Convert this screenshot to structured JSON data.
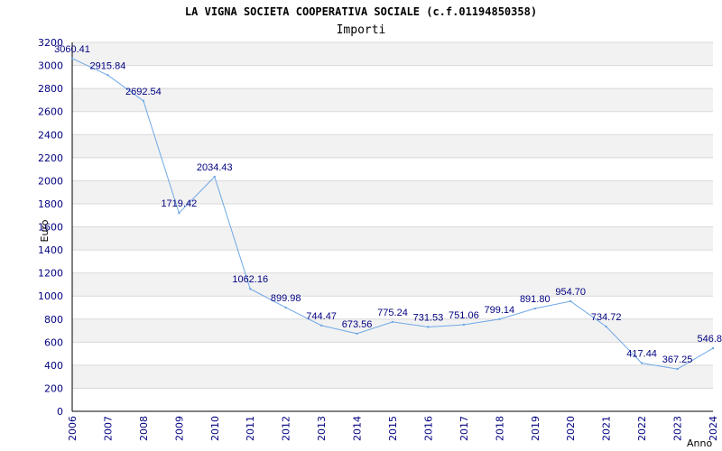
{
  "chart_data": {
    "type": "line",
    "title": "LA VIGNA SOCIETA COOPERATIVA SOCIALE (c.f.01194850358)",
    "subtitle": "Importi",
    "xlabel": "Anno",
    "ylabel": "Euro",
    "categories": [
      "2006",
      "2007",
      "2008",
      "2009",
      "2010",
      "2011",
      "2012",
      "2013",
      "2014",
      "2015",
      "2016",
      "2017",
      "2018",
      "2019",
      "2020",
      "2021",
      "2022",
      "2023",
      "2024"
    ],
    "values": [
      3060.41,
      2915.84,
      2692.54,
      1719.42,
      2034.43,
      1062.16,
      899.98,
      744.47,
      673.56,
      775.24,
      731.53,
      751.06,
      799.14,
      891.8,
      954.7,
      734.72,
      417.44,
      367.25,
      546.8
    ],
    "labels": [
      "3060.41",
      "2915.84",
      "2692.54",
      "1719.42",
      "2034.43",
      "1062.16",
      "899.98",
      "744.47",
      "673.56",
      "775.24",
      "731.53",
      "751.06",
      "799.14",
      "891.80",
      "954.70",
      "734.72",
      "417.44",
      "367.25",
      "546.8"
    ],
    "ylim": [
      0,
      3200
    ],
    "yticks": [
      0,
      200,
      400,
      600,
      800,
      1000,
      1200,
      1400,
      1600,
      1800,
      2000,
      2200,
      2400,
      2600,
      2800,
      3000,
      3200
    ],
    "grid": true,
    "colors": {
      "line": "#6fa8e6",
      "band": "#f2f2f2",
      "grid": "#d9d9d9",
      "axis": "#000000",
      "text": "#000080"
    }
  }
}
